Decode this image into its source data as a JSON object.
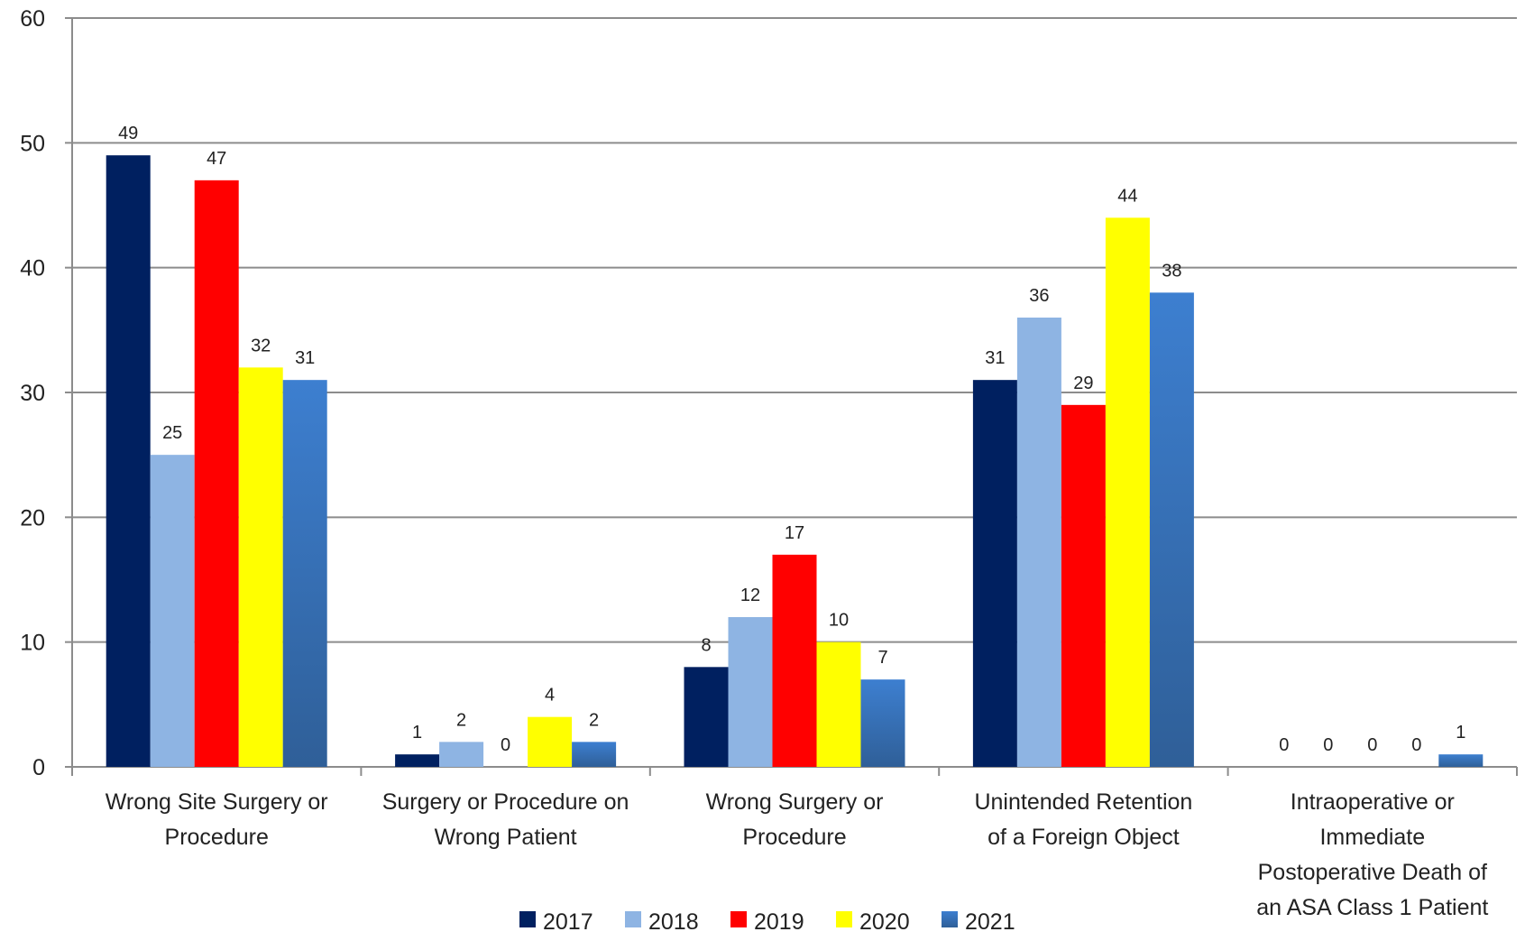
{
  "chart_data": {
    "type": "bar",
    "title": "",
    "xlabel": "",
    "ylabel": "",
    "ylim": [
      0,
      60
    ],
    "yticks": [
      0,
      10,
      20,
      30,
      40,
      50,
      60
    ],
    "grid": true,
    "legend_position": "bottom",
    "categories": [
      [
        "Wrong Site Surgery or",
        "Procedure"
      ],
      [
        "Surgery or Procedure on",
        "Wrong Patient"
      ],
      [
        "Wrong Surgery or",
        "Procedure"
      ],
      [
        "Unintended Retention",
        "of a Foreign Object"
      ],
      [
        "Intraoperative or",
        "Immediate",
        "Postoperative Death of",
        "an ASA Class 1 Patient"
      ]
    ],
    "series": [
      {
        "name": "2017",
        "color": "#002060",
        "values": [
          49,
          1,
          8,
          31,
          0
        ]
      },
      {
        "name": "2018",
        "color": "#8EB4E3",
        "values": [
          25,
          2,
          12,
          36,
          0
        ]
      },
      {
        "name": "2019",
        "color": "#FF0000",
        "values": [
          47,
          0,
          17,
          29,
          0
        ]
      },
      {
        "name": "2020",
        "color": "#FFFF00",
        "values": [
          32,
          4,
          10,
          44,
          0
        ]
      },
      {
        "name": "2021",
        "color": "#3A78C3",
        "values": [
          31,
          2,
          7,
          38,
          1
        ]
      }
    ]
  }
}
